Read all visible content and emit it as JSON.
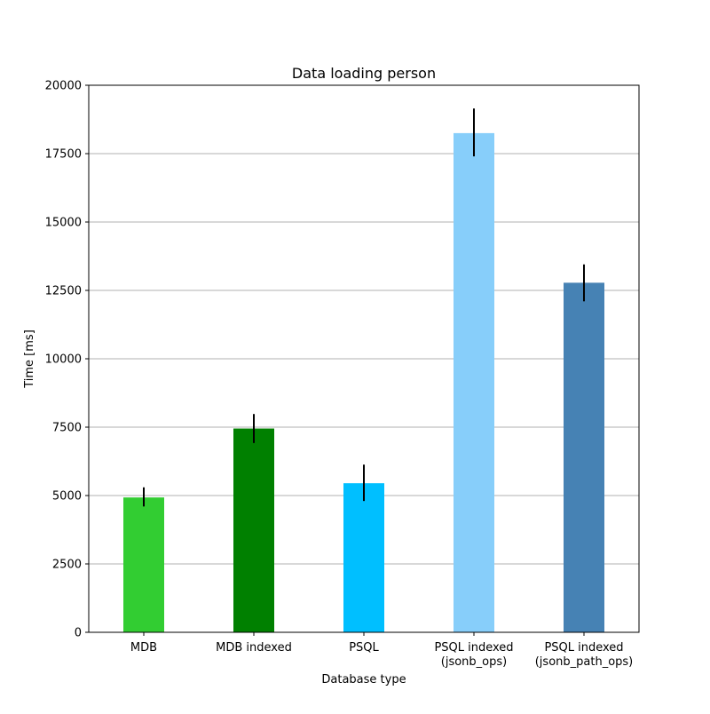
{
  "chart_data": {
    "type": "bar",
    "title": "Data loading person",
    "xlabel": "Database type",
    "ylabel": "Time [ms]",
    "categories": [
      [
        "MDB"
      ],
      [
        "MDB indexed"
      ],
      [
        "PSQL"
      ],
      [
        "PSQL indexed",
        "(jsonb_ops)"
      ],
      [
        "PSQL indexed",
        "(jsonb_path_ops)"
      ]
    ],
    "values": [
      4930,
      7450,
      5450,
      18250,
      12780
    ],
    "errors": [
      [
        4600,
        5300
      ],
      [
        6920,
        7980
      ],
      [
        4800,
        6130
      ],
      [
        17400,
        19150
      ],
      [
        12100,
        13450
      ]
    ],
    "colors": [
      "#32cd32",
      "#008000",
      "#00bfff",
      "#87cefa",
      "#4682b4"
    ],
    "ylim": [
      0,
      20000
    ],
    "yticks": [
      0,
      2500,
      5000,
      7500,
      10000,
      12500,
      15000,
      17500,
      20000
    ],
    "grid": "horizontal",
    "legend": "none"
  }
}
